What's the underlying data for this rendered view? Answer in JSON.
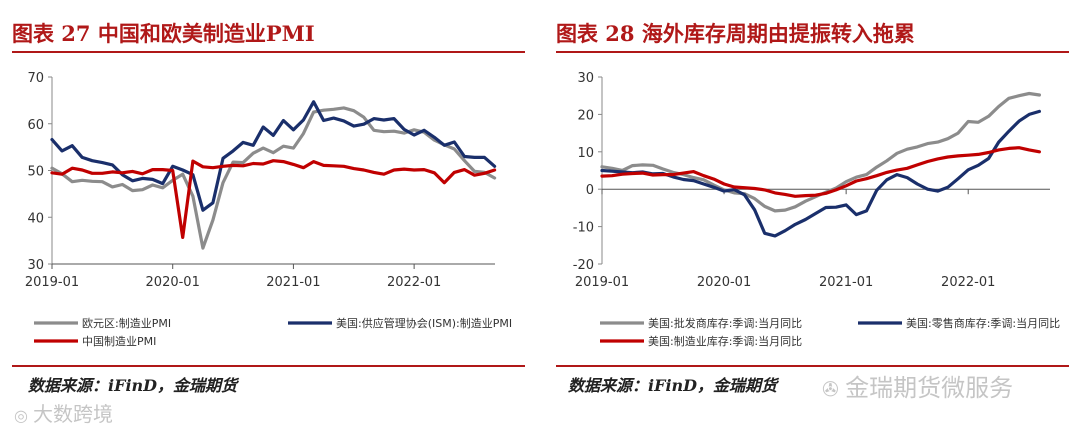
{
  "charts": [
    {
      "title": "图表 27 中国和欧美制造业PMI",
      "source": "数据来源：iFinD，金瑞期货"
    },
    {
      "title": "图表 28 海外库存周期由提振转入拖累",
      "source": "数据来源：iFinD，金瑞期货"
    }
  ],
  "watermarks": {
    "left": "大数跨境",
    "right": "金瑞期货微服务"
  },
  "chart_data": [
    {
      "type": "line",
      "title": "图表 27 中国和欧美制造业PMI",
      "ylim": [
        30,
        70
      ],
      "yticks": [
        30,
        40,
        50,
        60,
        70
      ],
      "xlim": [
        2019.0,
        2022.67
      ],
      "xticks": [
        {
          "v": 2019.0,
          "label": "2019-01"
        },
        {
          "v": 2020.0,
          "label": "2020-01"
        },
        {
          "v": 2021.0,
          "label": "2021-01"
        },
        {
          "v": 2022.0,
          "label": "2022-01"
        }
      ],
      "series": [
        {
          "name": "欧元区:制造业PMI",
          "color": "#8c8c8c",
          "x": [
            2019.0,
            2019.083,
            2019.167,
            2019.25,
            2019.333,
            2019.417,
            2019.5,
            2019.583,
            2019.667,
            2019.75,
            2019.833,
            2019.917,
            2020.0,
            2020.083,
            2020.167,
            2020.25,
            2020.333,
            2020.417,
            2020.5,
            2020.583,
            2020.667,
            2020.75,
            2020.833,
            2020.917,
            2021.0,
            2021.083,
            2021.167,
            2021.25,
            2021.333,
            2021.417,
            2021.5,
            2021.583,
            2021.667,
            2021.75,
            2021.833,
            2021.917,
            2022.0,
            2022.083,
            2022.167,
            2022.25,
            2022.333,
            2022.417,
            2022.5,
            2022.583,
            2022.667
          ],
          "y": [
            50.5,
            49.3,
            47.6,
            47.9,
            47.7,
            47.6,
            46.5,
            47.0,
            45.7,
            45.9,
            46.9,
            46.3,
            47.9,
            49.2,
            44.5,
            33.4,
            39.4,
            47.4,
            51.8,
            51.7,
            53.7,
            54.8,
            53.8,
            55.2,
            54.8,
            57.9,
            62.5,
            62.9,
            63.1,
            63.4,
            62.8,
            61.4,
            58.6,
            58.3,
            58.4,
            58.0,
            58.7,
            58.2,
            56.5,
            55.5,
            54.6,
            52.1,
            49.8,
            49.6,
            48.4
          ]
        },
        {
          "name": "美国:供应管理协会(ISM):制造业PMI",
          "color": "#1a2f6b",
          "x": [
            2019.0,
            2019.083,
            2019.167,
            2019.25,
            2019.333,
            2019.417,
            2019.5,
            2019.583,
            2019.667,
            2019.75,
            2019.833,
            2019.917,
            2020.0,
            2020.083,
            2020.167,
            2020.25,
            2020.333,
            2020.417,
            2020.5,
            2020.583,
            2020.667,
            2020.75,
            2020.833,
            2020.917,
            2021.0,
            2021.083,
            2021.167,
            2021.25,
            2021.333,
            2021.417,
            2021.5,
            2021.583,
            2021.667,
            2021.75,
            2021.833,
            2021.917,
            2022.0,
            2022.083,
            2022.167,
            2022.25,
            2022.333,
            2022.417,
            2022.5,
            2022.583,
            2022.667
          ],
          "y": [
            56.6,
            54.2,
            55.3,
            52.8,
            52.1,
            51.7,
            51.2,
            49.1,
            47.8,
            48.3,
            48.1,
            47.2,
            50.9,
            50.1,
            49.1,
            41.5,
            43.1,
            52.6,
            54.2,
            56.0,
            55.4,
            59.3,
            57.5,
            60.7,
            58.7,
            60.8,
            64.7,
            60.7,
            61.2,
            60.6,
            59.5,
            59.9,
            61.1,
            60.8,
            61.1,
            58.8,
            57.6,
            58.6,
            57.1,
            55.4,
            56.1,
            53.0,
            52.8,
            52.8,
            50.9
          ]
        },
        {
          "name": "中国制造业PMI",
          "color": "#c00000",
          "x": [
            2019.0,
            2019.083,
            2019.167,
            2019.25,
            2019.333,
            2019.417,
            2019.5,
            2019.583,
            2019.667,
            2019.75,
            2019.833,
            2019.917,
            2020.0,
            2020.083,
            2020.167,
            2020.25,
            2020.333,
            2020.417,
            2020.5,
            2020.583,
            2020.667,
            2020.75,
            2020.833,
            2020.917,
            2021.0,
            2021.083,
            2021.167,
            2021.25,
            2021.333,
            2021.417,
            2021.5,
            2021.583,
            2021.667,
            2021.75,
            2021.833,
            2021.917,
            2022.0,
            2022.083,
            2022.167,
            2022.25,
            2022.333,
            2022.417,
            2022.5,
            2022.583,
            2022.667
          ],
          "y": [
            49.5,
            49.2,
            50.5,
            50.1,
            49.4,
            49.4,
            49.7,
            49.5,
            49.8,
            49.3,
            50.2,
            50.2,
            50.0,
            35.7,
            52.0,
            50.8,
            50.6,
            50.9,
            51.1,
            51.0,
            51.5,
            51.4,
            52.1,
            51.9,
            51.3,
            50.6,
            51.9,
            51.1,
            51.0,
            50.9,
            50.4,
            50.1,
            49.6,
            49.2,
            50.1,
            50.3,
            50.1,
            50.2,
            49.5,
            47.4,
            49.6,
            50.2,
            49.0,
            49.4,
            50.1
          ]
        }
      ]
    },
    {
      "type": "line",
      "title": "图表 28 海外库存周期由提振转入拖累",
      "ylim": [
        -20,
        30
      ],
      "yticks": [
        -20,
        -10,
        0,
        10,
        20,
        30
      ],
      "xlim": [
        2019.0,
        2022.67
      ],
      "xticks": [
        {
          "v": 2019.0,
          "label": "2019-01"
        },
        {
          "v": 2020.0,
          "label": "2020-01"
        },
        {
          "v": 2021.0,
          "label": "2021-01"
        },
        {
          "v": 2022.0,
          "label": "2022-01"
        }
      ],
      "series": [
        {
          "name": "美国:批发商库存:季调:当月同比",
          "color": "#8c8c8c",
          "x": [
            2019.0,
            2019.083,
            2019.167,
            2019.25,
            2019.333,
            2019.417,
            2019.5,
            2019.583,
            2019.667,
            2019.75,
            2019.833,
            2019.917,
            2020.0,
            2020.083,
            2020.167,
            2020.25,
            2020.333,
            2020.417,
            2020.5,
            2020.583,
            2020.667,
            2020.75,
            2020.833,
            2020.917,
            2021.0,
            2021.083,
            2021.167,
            2021.25,
            2021.333,
            2021.417,
            2021.5,
            2021.583,
            2021.667,
            2021.75,
            2021.833,
            2021.917,
            2022.0,
            2022.083,
            2022.167,
            2022.25,
            2022.333,
            2022.417,
            2022.5,
            2022.583
          ],
          "y": [
            6.0,
            5.6,
            5.0,
            6.3,
            6.5,
            6.4,
            5.4,
            4.5,
            3.9,
            3.1,
            2.5,
            1.1,
            -0.2,
            -1.0,
            -1.2,
            -2.5,
            -4.6,
            -5.8,
            -5.6,
            -4.7,
            -3.2,
            -2.0,
            -0.8,
            0.3,
            2.0,
            3.2,
            3.9,
            5.9,
            7.6,
            9.6,
            10.7,
            11.3,
            12.2,
            12.6,
            13.5,
            15.0,
            18.1,
            17.9,
            19.5,
            22.1,
            24.3,
            25.0,
            25.6,
            25.2
          ]
        },
        {
          "name": "美国:零售商库存:季调:当月同比",
          "color": "#1a2f6b",
          "x": [
            2019.0,
            2019.083,
            2019.167,
            2019.25,
            2019.333,
            2019.417,
            2019.5,
            2019.583,
            2019.667,
            2019.75,
            2019.833,
            2019.917,
            2020.0,
            2020.083,
            2020.167,
            2020.25,
            2020.333,
            2020.417,
            2020.5,
            2020.583,
            2020.667,
            2020.75,
            2020.833,
            2020.917,
            2021.0,
            2021.083,
            2021.167,
            2021.25,
            2021.333,
            2021.417,
            2021.5,
            2021.583,
            2021.667,
            2021.75,
            2021.833,
            2021.917,
            2022.0,
            2022.083,
            2022.167,
            2022.25,
            2022.333,
            2022.417,
            2022.5,
            2022.583
          ],
          "y": [
            5.0,
            4.8,
            4.6,
            4.4,
            4.6,
            4.1,
            4.2,
            3.3,
            2.6,
            2.3,
            1.4,
            0.5,
            -0.5,
            -0.1,
            -1.5,
            -5.5,
            -11.8,
            -12.5,
            -11.1,
            -9.4,
            -8.1,
            -6.5,
            -4.9,
            -4.8,
            -4.2,
            -6.8,
            -5.8,
            -0.3,
            2.5,
            3.9,
            3.1,
            1.4,
            0.0,
            -0.5,
            0.5,
            2.8,
            5.2,
            6.4,
            8.2,
            12.6,
            15.5,
            18.2,
            20.0,
            20.8
          ]
        },
        {
          "name": "美国:制造业库存:季调:当月同比",
          "color": "#c00000",
          "x": [
            2019.0,
            2019.083,
            2019.167,
            2019.25,
            2019.333,
            2019.417,
            2019.5,
            2019.583,
            2019.667,
            2019.75,
            2019.833,
            2019.917,
            2020.0,
            2020.083,
            2020.167,
            2020.25,
            2020.333,
            2020.417,
            2020.5,
            2020.583,
            2020.667,
            2020.75,
            2020.833,
            2020.917,
            2021.0,
            2021.083,
            2021.167,
            2021.25,
            2021.333,
            2021.417,
            2021.5,
            2021.583,
            2021.667,
            2021.75,
            2021.833,
            2021.917,
            2022.0,
            2022.083,
            2022.167,
            2022.25,
            2022.333,
            2022.417,
            2022.5,
            2022.583
          ],
          "y": [
            3.5,
            3.6,
            4.0,
            4.2,
            4.3,
            3.8,
            3.9,
            3.9,
            4.3,
            4.7,
            3.6,
            2.7,
            1.4,
            0.6,
            0.4,
            0.2,
            -0.2,
            -1.0,
            -1.4,
            -1.9,
            -1.7,
            -1.6,
            -1.1,
            -0.2,
            0.9,
            2.2,
            2.8,
            3.6,
            4.5,
            5.1,
            5.6,
            6.5,
            7.4,
            8.1,
            8.6,
            8.9,
            9.1,
            9.3,
            9.8,
            10.5,
            10.9,
            11.1,
            10.5,
            10.0
          ]
        }
      ]
    }
  ]
}
